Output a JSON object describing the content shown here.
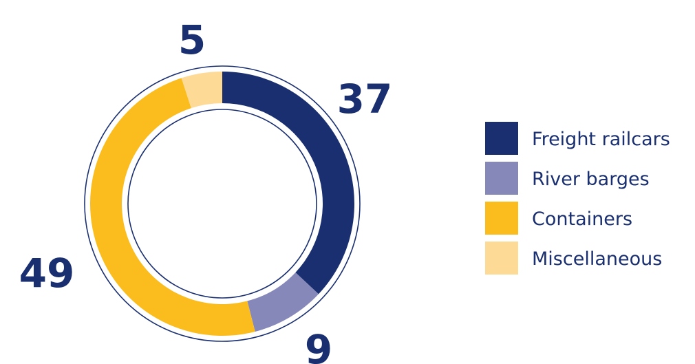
{
  "chart_data": {
    "type": "pie",
    "variant": "donut",
    "categories": [
      "Freight railcars",
      "River barges",
      "Containers",
      "Miscellaneous"
    ],
    "values": [
      37,
      9,
      49,
      5
    ],
    "data_labels": [
      "37",
      "9",
      "49",
      "5"
    ],
    "colors": [
      "#1a2f70",
      "#8588b8",
      "#fbbd1e",
      "#fdda96"
    ],
    "legend": {
      "position": "right",
      "entries": [
        "Freight railcars",
        "River barges",
        "Containers",
        "Miscellaneous"
      ]
    },
    "title": "",
    "accent_color": "#1a2f70"
  }
}
